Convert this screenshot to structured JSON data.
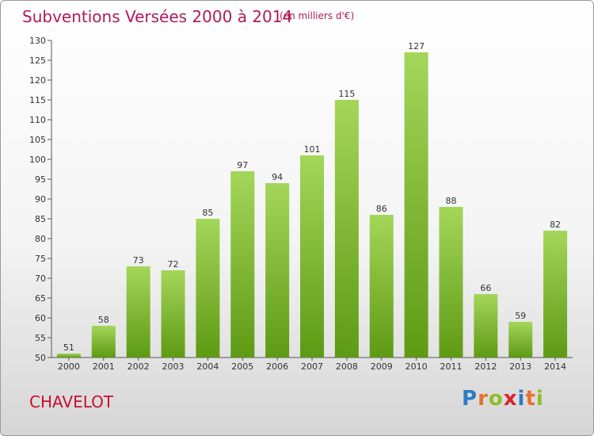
{
  "title": "Subventions Versées 2000 à 2014",
  "subtitle": "(en milliers d'€)",
  "commune": "CHAVELOT",
  "logo": {
    "letters": [
      "P",
      "r",
      "o",
      "x",
      "i",
      "t",
      "i"
    ]
  },
  "colors": {
    "bar_top": "#a4d65a",
    "bar_bottom": "#5e9a14",
    "title": "#b01a5b",
    "commune": "#c8102e"
  },
  "chart_data": {
    "type": "bar",
    "title": "Subventions Versées 2000 à 2014",
    "subtitle": "(en milliers d'€)",
    "categories": [
      "2000",
      "2001",
      "2002",
      "2003",
      "2004",
      "2005",
      "2006",
      "2007",
      "2008",
      "2009",
      "2010",
      "2011",
      "2012",
      "2013",
      "2014"
    ],
    "values": [
      51,
      58,
      73,
      72,
      85,
      97,
      94,
      101,
      115,
      86,
      127,
      88,
      66,
      59,
      82
    ],
    "ylim": [
      50,
      130
    ],
    "yticks": [
      50,
      55,
      60,
      65,
      70,
      75,
      80,
      85,
      90,
      95,
      100,
      105,
      110,
      115,
      120,
      125,
      130
    ],
    "grid": false,
    "legend": "none"
  }
}
